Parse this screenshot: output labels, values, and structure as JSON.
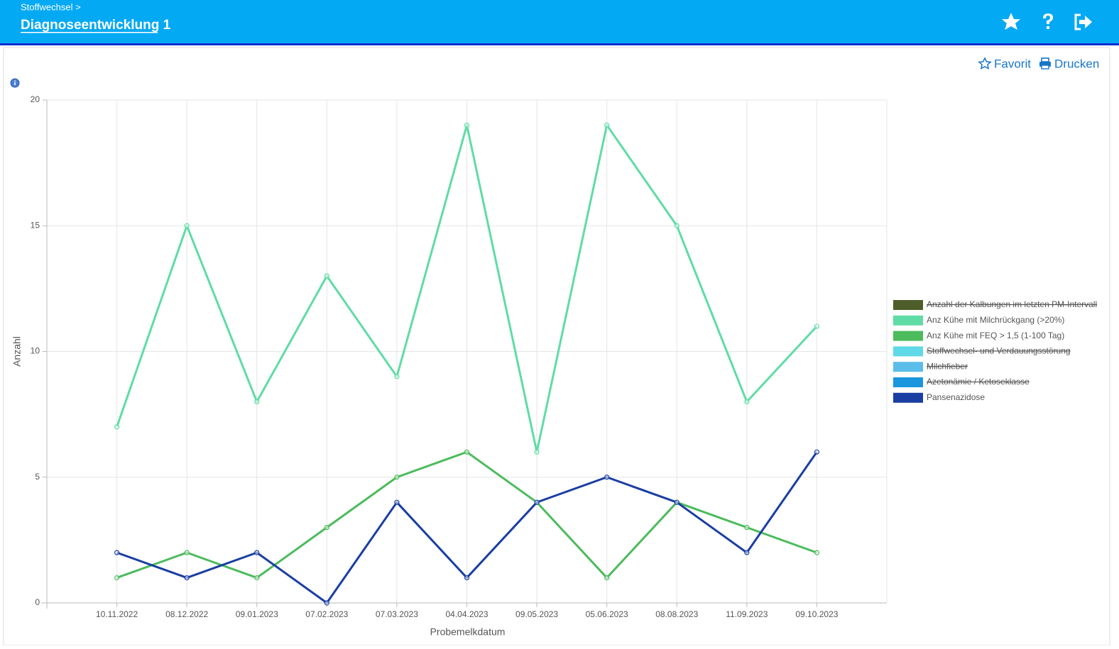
{
  "header": {
    "breadcrumb": "Stoffwechsel >",
    "title": "Diagnoseentwicklung 1"
  },
  "toolbar": {
    "favorite": "Favorit",
    "print": "Drucken"
  },
  "chart_data": {
    "type": "line",
    "xlabel": "Probemelkdatum",
    "ylabel": "Anzahl",
    "categories": [
      "10.11.2022",
      "08.12.2022",
      "09.01.2023",
      "07.02.2023",
      "07.03.2023",
      "04.04.2023",
      "09.05.2023",
      "05.06.2023",
      "08.08.2023",
      "11.09.2023",
      "09.10.2023"
    ],
    "ylim": [
      0,
      20
    ],
    "yticks": [
      0,
      5,
      10,
      15,
      20
    ],
    "grid": true,
    "legend": "right",
    "series": [
      {
        "name": "Anzahl der Kalbungen im letzten PM-Intervall",
        "color": "#4d5e2a",
        "hidden": true
      },
      {
        "name": "Anz Kühe mit Milchrückgang (>20%)",
        "color": "#5fdca5",
        "values": [
          7,
          15,
          8,
          13,
          9,
          19,
          6,
          19,
          15,
          8,
          11
        ]
      },
      {
        "name": "Anz Kühe mit FEQ > 1,5 (1-100 Tag)",
        "color": "#4cbb5c",
        "values": [
          1,
          2,
          1,
          3,
          5,
          6,
          4,
          1,
          4,
          3,
          2
        ]
      },
      {
        "name": "Stoffwechsel- und Verdauungsstörung",
        "color": "#5fd9e8",
        "hidden": true
      },
      {
        "name": "Milchfieber",
        "color": "#5bbde9",
        "hidden": true
      },
      {
        "name": "Azetonämie / Ketoseklasse",
        "color": "#1a96dd",
        "hidden": true
      },
      {
        "name": "Pansenazidose",
        "color": "#1a3ea2",
        "values": [
          2,
          1,
          2,
          0,
          4,
          1,
          4,
          5,
          4,
          2,
          6
        ]
      }
    ]
  }
}
